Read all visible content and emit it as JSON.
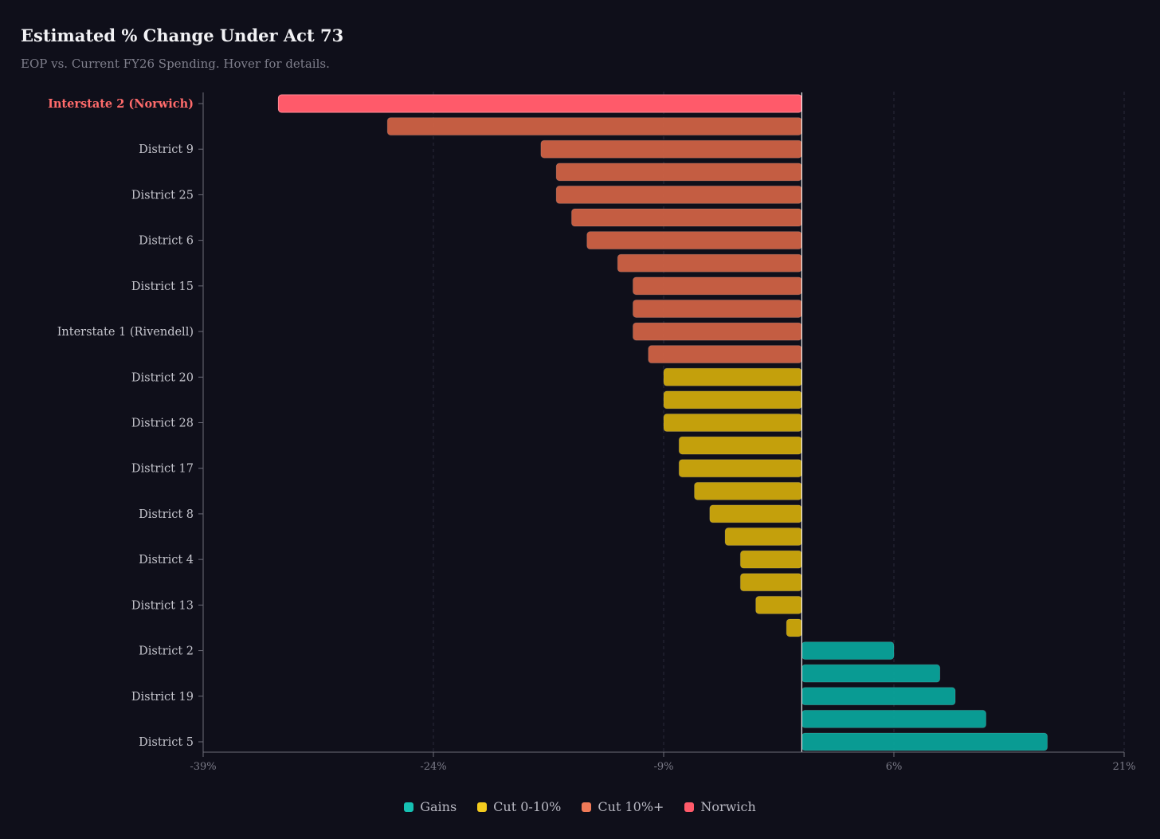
{
  "title": "Estimated % Change Under Act 73",
  "subtitle": "EOP vs. Current FY26 Spending. Hover for details.",
  "colors": {
    "background": "#0f0f1a",
    "gains": "#0aa39a",
    "cut_0_10": "#cfa90c",
    "cut_10_plus": "#cf6245",
    "norwich": "#ff5a6a",
    "axis": "#6c6c78",
    "grid": "#2a2a3a"
  },
  "legend": [
    {
      "label": "Gains",
      "color": "#16c1b3"
    },
    {
      "label": "Cut 0-10%",
      "color": "#f3cb1e"
    },
    {
      "label": "Cut 10%+",
      "color": "#f07a58"
    },
    {
      "label": "Norwich",
      "color": "#ff5a6a"
    }
  ],
  "chart_data": {
    "type": "bar",
    "orientation": "horizontal",
    "title": "Estimated % Change Under Act 73",
    "subtitle": "EOP vs. Current FY26 Spending. Hover for details.",
    "xlim": [
      -39,
      21
    ],
    "xticks": [
      -39,
      -24,
      -9,
      6,
      21
    ],
    "xtick_labels": [
      "-39%",
      "-24%",
      "-9%",
      "6%",
      "21%"
    ],
    "grid": "vertical dashed",
    "legend_position": "bottom-center",
    "y_labels_shown_every": 2,
    "bars": [
      {
        "label": "Interstate 2 (Norwich)",
        "value": -34.1,
        "category": "Norwich",
        "highlight": true
      },
      {
        "label": "",
        "value": -27.0,
        "category": "Cut 10%+"
      },
      {
        "label": "District 9",
        "value": -17.0,
        "category": "Cut 10%+"
      },
      {
        "label": "",
        "value": -16.0,
        "category": "Cut 10%+"
      },
      {
        "label": "District 25",
        "value": -16.0,
        "category": "Cut 10%+"
      },
      {
        "label": "",
        "value": -15.0,
        "category": "Cut 10%+"
      },
      {
        "label": "District 6",
        "value": -14.0,
        "category": "Cut 10%+"
      },
      {
        "label": "",
        "value": -12.0,
        "category": "Cut 10%+"
      },
      {
        "label": "District 15",
        "value": -11.0,
        "category": "Cut 10%+"
      },
      {
        "label": "",
        "value": -11.0,
        "category": "Cut 10%+"
      },
      {
        "label": "Interstate 1 (Rivendell)",
        "value": -11.0,
        "category": "Cut 10%+"
      },
      {
        "label": "",
        "value": -10.0,
        "category": "Cut 10%+"
      },
      {
        "label": "District 20",
        "value": -9.0,
        "category": "Cut 0-10%"
      },
      {
        "label": "",
        "value": -9.0,
        "category": "Cut 0-10%"
      },
      {
        "label": "District 28",
        "value": -9.0,
        "category": "Cut 0-10%"
      },
      {
        "label": "",
        "value": -8.0,
        "category": "Cut 0-10%"
      },
      {
        "label": "District 17",
        "value": -8.0,
        "category": "Cut 0-10%"
      },
      {
        "label": "",
        "value": -7.0,
        "category": "Cut 0-10%"
      },
      {
        "label": "District 8",
        "value": -6.0,
        "category": "Cut 0-10%"
      },
      {
        "label": "",
        "value": -5.0,
        "category": "Cut 0-10%"
      },
      {
        "label": "District 4",
        "value": -4.0,
        "category": "Cut 0-10%"
      },
      {
        "label": "",
        "value": -4.0,
        "category": "Cut 0-10%"
      },
      {
        "label": "District 13",
        "value": -3.0,
        "category": "Cut 0-10%"
      },
      {
        "label": "",
        "value": -1.0,
        "category": "Cut 0-10%"
      },
      {
        "label": "District 2",
        "value": 6.0,
        "category": "Gains"
      },
      {
        "label": "",
        "value": 9.0,
        "category": "Gains"
      },
      {
        "label": "District 19",
        "value": 10.0,
        "category": "Gains"
      },
      {
        "label": "",
        "value": 12.0,
        "category": "Gains"
      },
      {
        "label": "District 5",
        "value": 16.0,
        "category": "Gains"
      }
    ]
  }
}
